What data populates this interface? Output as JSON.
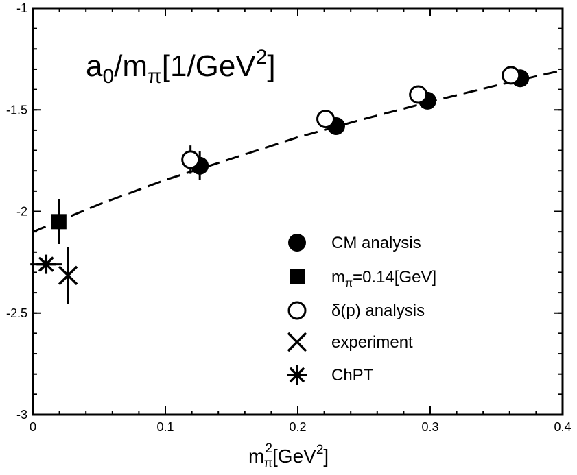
{
  "chart_data": {
    "type": "scatter",
    "title": {
      "main": "a",
      "sub1": "0",
      "mid": "/m",
      "sub2": "π",
      "tail": "[1/GeV",
      "sup": "2",
      "end": "]"
    },
    "xlabel": {
      "main": "m",
      "sub": "π",
      "sup1": "2",
      "mid": "[GeV",
      "sup2": "2",
      "end": "]"
    },
    "ylabel": "",
    "xlim": [
      0,
      0.4
    ],
    "ylim": [
      -3,
      -1
    ],
    "xticks": [
      "0",
      "0.1",
      "0.2",
      "0.3",
      "0.4"
    ],
    "xtick_values": [
      0,
      0.1,
      0.2,
      0.3,
      0.4
    ],
    "yticks": [
      "-1",
      "-1.5",
      "-2",
      "-2.5",
      "-3"
    ],
    "ytick_values": [
      -1,
      -1.5,
      -2,
      -2.5,
      -3
    ],
    "grid": false,
    "legend_position": "lower-right",
    "series": [
      {
        "name": "CM analysis",
        "marker": "filled-circle",
        "points": [
          {
            "x": 0.126,
            "y": -1.775,
            "yerr": 0.07
          },
          {
            "x": 0.229,
            "y": -1.58,
            "yerr": 0.0
          },
          {
            "x": 0.298,
            "y": -1.455,
            "yerr": 0.0
          },
          {
            "x": 0.368,
            "y": -1.345,
            "yerr": 0.0
          }
        ]
      },
      {
        "name": "m_π=0.14[GeV]",
        "marker": "filled-square",
        "points": [
          {
            "x": 0.0196,
            "y": -2.05,
            "yerr": 0.11
          }
        ]
      },
      {
        "name": "δ(p) analysis",
        "marker": "open-circle",
        "points": [
          {
            "x": 0.119,
            "y": -1.745,
            "yerr": 0.07
          },
          {
            "x": 0.221,
            "y": -1.545,
            "yerr": 0.0
          },
          {
            "x": 0.291,
            "y": -1.425,
            "yerr": 0.0
          },
          {
            "x": 0.361,
            "y": -1.33,
            "yerr": 0.0
          }
        ]
      },
      {
        "name": "experiment",
        "marker": "cross",
        "points": [
          {
            "x": 0.0265,
            "y": -2.315,
            "yerr": 0.14
          }
        ]
      },
      {
        "name": "ChPT",
        "marker": "asterisk",
        "points": [
          {
            "x": 0.01,
            "y": -2.26,
            "xerr": 0.012
          }
        ]
      }
    ],
    "fit_curve": {
      "style": "dashed",
      "x": [
        0,
        0.05,
        0.1,
        0.15,
        0.2,
        0.25,
        0.3,
        0.35,
        0.4
      ],
      "y": [
        -2.1,
        -1.965,
        -1.845,
        -1.74,
        -1.635,
        -1.545,
        -1.46,
        -1.38,
        -1.305
      ]
    },
    "legend": {
      "entries": [
        {
          "marker": "filled-circle",
          "label": "CM analysis"
        },
        {
          "marker": "filled-square",
          "label_main": "m",
          "label_sub": "π",
          "label_rest": "=0.14[GeV]"
        },
        {
          "marker": "open-circle",
          "label": "δ(p) analysis"
        },
        {
          "marker": "cross",
          "label": "experiment"
        },
        {
          "marker": "asterisk",
          "label": "ChPT"
        }
      ]
    }
  }
}
